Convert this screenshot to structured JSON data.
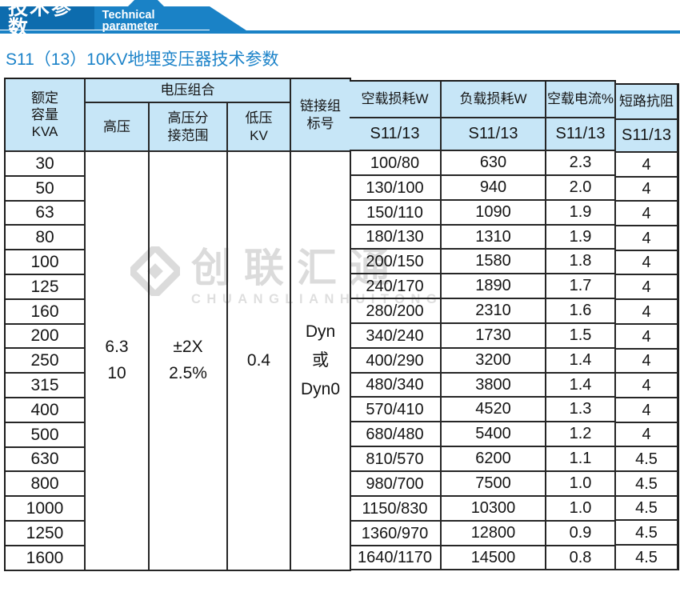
{
  "colors": {
    "banner_dark_blue": "#0d6cae",
    "banner_light_blue": "#1a82c6",
    "table_header_fill": "#c7e6f7",
    "title_blue": "#1c83c9",
    "grid_line": "#262626"
  },
  "banner": {
    "title_zh": "技术参数",
    "title_en": "Technical parameter"
  },
  "page_title": "S11（13）10KV地埋变压器技术参数",
  "watermark": {
    "logo": "diamond-logo",
    "name_zh": "创联汇通",
    "name_en": "CHUANGLIANHUITONG"
  },
  "table": {
    "headers": {
      "capacity": "额定\n容量\nKVA",
      "voltage_group": "电压组合",
      "hv": "高压",
      "hv_tap": "高压分\n接范围",
      "lv": "低压\nKV",
      "vector_group": "链接组\n标号",
      "no_load_loss": "空载损耗W",
      "load_loss": "负载损耗W",
      "no_load_current": "空载电流%",
      "impedance": "短路抗阻",
      "model_label": "S11/13"
    },
    "merged_values": {
      "hv_value": "6.3\n10",
      "hv_tap_value": "±2X\n2.5%",
      "lv_value": "0.4",
      "vector_value": "Dyn\n或\nDyn0"
    },
    "rows": [
      {
        "kva": "30",
        "no_load_loss": "100/80",
        "load_loss": "630",
        "no_load_current": "2.3",
        "impedance": "4"
      },
      {
        "kva": "50",
        "no_load_loss": "130/100",
        "load_loss": "940",
        "no_load_current": "2.0",
        "impedance": "4"
      },
      {
        "kva": "63",
        "no_load_loss": "150/110",
        "load_loss": "1090",
        "no_load_current": "1.9",
        "impedance": "4"
      },
      {
        "kva": "80",
        "no_load_loss": "180/130",
        "load_loss": "1310",
        "no_load_current": "1.9",
        "impedance": "4"
      },
      {
        "kva": "100",
        "no_load_loss": "200/150",
        "load_loss": "1580",
        "no_load_current": "1.8",
        "impedance": "4"
      },
      {
        "kva": "125",
        "no_load_loss": "240/170",
        "load_loss": "1890",
        "no_load_current": "1.7",
        "impedance": "4"
      },
      {
        "kva": "160",
        "no_load_loss": "280/200",
        "load_loss": "2310",
        "no_load_current": "1.6",
        "impedance": "4"
      },
      {
        "kva": "200",
        "no_load_loss": "340/240",
        "load_loss": "1730",
        "no_load_current": "1.5",
        "impedance": "4"
      },
      {
        "kva": "250",
        "no_load_loss": "400/290",
        "load_loss": "3200",
        "no_load_current": "1.4",
        "impedance": "4"
      },
      {
        "kva": "315",
        "no_load_loss": "480/340",
        "load_loss": "3800",
        "no_load_current": "1.4",
        "impedance": "4"
      },
      {
        "kva": "400",
        "no_load_loss": "570/410",
        "load_loss": "4520",
        "no_load_current": "1.3",
        "impedance": "4"
      },
      {
        "kva": "500",
        "no_load_loss": "680/480",
        "load_loss": "5400",
        "no_load_current": "1.2",
        "impedance": "4"
      },
      {
        "kva": "630",
        "no_load_loss": "810/570",
        "load_loss": "6200",
        "no_load_current": "1.1",
        "impedance": "4.5"
      },
      {
        "kva": "800",
        "no_load_loss": "980/700",
        "load_loss": "7500",
        "no_load_current": "1.0",
        "impedance": "4.5"
      },
      {
        "kva": "1000",
        "no_load_loss": "1150/830",
        "load_loss": "10300",
        "no_load_current": "1.0",
        "impedance": "4.5"
      },
      {
        "kva": "1250",
        "no_load_loss": "1360/970",
        "load_loss": "12800",
        "no_load_current": "0.9",
        "impedance": "4.5"
      },
      {
        "kva": "1600",
        "no_load_loss": "1640/1170",
        "load_loss": "14500",
        "no_load_current": "0.8",
        "impedance": "4.5"
      }
    ]
  }
}
